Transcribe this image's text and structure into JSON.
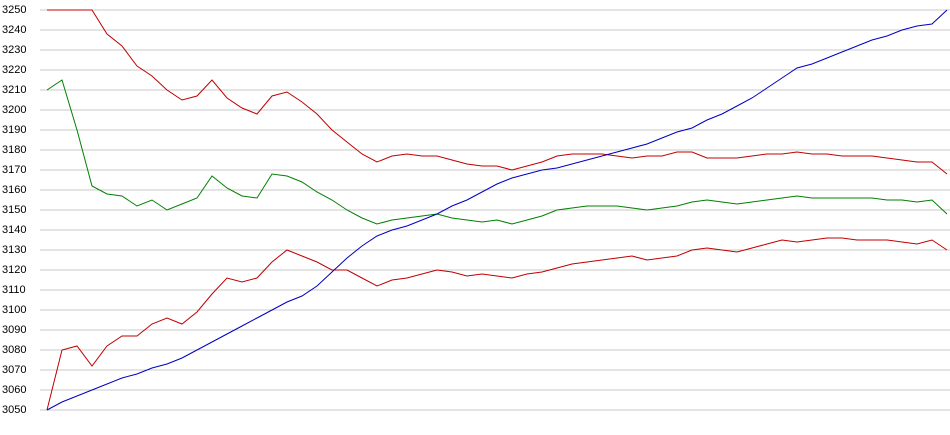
{
  "chart_data": {
    "type": "line",
    "categories": [
      null,
      null,
      null,
      null,
      null,
      null,
      null,
      null,
      null,
      null,
      null,
      null,
      null,
      null,
      null,
      null,
      null,
      null,
      null,
      null,
      null,
      null,
      null,
      null,
      null,
      null,
      null,
      null,
      null,
      null,
      null,
      null,
      null,
      null,
      null,
      null,
      null,
      null,
      null,
      null,
      null,
      null,
      null,
      null,
      null,
      null,
      null,
      null,
      null,
      null,
      null,
      null,
      null,
      null,
      null,
      null,
      null,
      null,
      null,
      null,
      null
    ],
    "ylim": [
      3050,
      3250
    ],
    "yticks": [
      3050,
      3060,
      3070,
      3080,
      3090,
      3100,
      3110,
      3120,
      3130,
      3140,
      3150,
      3160,
      3170,
      3180,
      3190,
      3200,
      3210,
      3220,
      3230,
      3240,
      3250
    ],
    "grid": true,
    "series": [
      {
        "color": "#c00000",
        "values": [
          3250,
          3250,
          3250,
          3250,
          3238,
          3232,
          3222,
          3217,
          3210,
          3205,
          3207,
          3215,
          3206,
          3201,
          3198,
          3207,
          3209,
          3204,
          3198,
          3190,
          3184,
          3178,
          3174,
          3177,
          3178,
          3177,
          3177,
          3175,
          3173,
          3172,
          3172,
          3170,
          3172,
          3174,
          3177,
          3178,
          3178,
          3178,
          3177,
          3176,
          3177,
          3177,
          3179,
          3179,
          3176,
          3176,
          3176,
          3177,
          3178,
          3178,
          3179,
          3178,
          3178,
          3177,
          3177,
          3177,
          3176,
          3175,
          3174,
          3174,
          3168
        ]
      },
      {
        "color": "#008000",
        "values": [
          3210,
          3215,
          3190,
          3162,
          3158,
          3157,
          3152,
          3155,
          3150,
          3153,
          3156,
          3167,
          3161,
          3157,
          3156,
          3168,
          3167,
          3164,
          3159,
          3155,
          3150,
          3146,
          3143,
          3145,
          3146,
          3147,
          3148,
          3146,
          3145,
          3144,
          3145,
          3143,
          3145,
          3147,
          3150,
          3151,
          3152,
          3152,
          3152,
          3151,
          3150,
          3151,
          3152,
          3154,
          3155,
          3154,
          3153,
          3154,
          3155,
          3156,
          3157,
          3156,
          3156,
          3156,
          3156,
          3156,
          3155,
          3155,
          3154,
          3155,
          3148
        ]
      },
      {
        "color": "#c00000",
        "values": [
          3050,
          3080,
          3082,
          3072,
          3082,
          3087,
          3087,
          3093,
          3096,
          3093,
          3099,
          3108,
          3116,
          3114,
          3116,
          3124,
          3130,
          3127,
          3124,
          3120,
          3120,
          3116,
          3112,
          3115,
          3116,
          3118,
          3120,
          3119,
          3117,
          3118,
          3117,
          3116,
          3118,
          3119,
          3121,
          3123,
          3124,
          3125,
          3126,
          3127,
          3125,
          3126,
          3127,
          3130,
          3131,
          3130,
          3129,
          3131,
          3133,
          3135,
          3134,
          3135,
          3136,
          3136,
          3135,
          3135,
          3135,
          3134,
          3133,
          3135,
          3130
        ]
      },
      {
        "color": "#0000c0",
        "values": [
          3050,
          3054,
          3057,
          3060,
          3063,
          3066,
          3068,
          3071,
          3073,
          3076,
          3080,
          3084,
          3088,
          3092,
          3096,
          3100,
          3104,
          3107,
          3112,
          3119,
          3126,
          3132,
          3137,
          3140,
          3142,
          3145,
          3148,
          3152,
          3155,
          3159,
          3163,
          3166,
          3168,
          3170,
          3171,
          3173,
          3175,
          3177,
          3179,
          3181,
          3183,
          3186,
          3189,
          3191,
          3195,
          3198,
          3202,
          3206,
          3211,
          3216,
          3221,
          3223,
          3226,
          3229,
          3232,
          3235,
          3237,
          3240,
          3242,
          3243,
          3250
        ]
      }
    ]
  }
}
